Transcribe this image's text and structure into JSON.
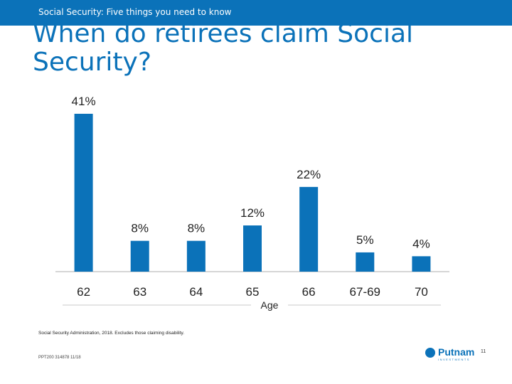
{
  "header": {
    "section_label": "Social Security: Five things you need to know"
  },
  "slide": {
    "title": "When do retirees claim Social Security?"
  },
  "chart_data": {
    "type": "bar",
    "title": "",
    "xlabel": "Age",
    "ylabel": "",
    "categories": [
      "62",
      "63",
      "64",
      "65",
      "66",
      "67-69",
      "70"
    ],
    "values": [
      41,
      8,
      8,
      12,
      22,
      5,
      4
    ],
    "data_labels": [
      "41%",
      "8%",
      "8%",
      "12%",
      "22%",
      "5%",
      "4%"
    ],
    "ylim": [
      0,
      41
    ],
    "grid": false,
    "bar_color": "#0b72b9"
  },
  "footer": {
    "source": "Social Security Administration, 2018. Excludes those claiming disability.",
    "code": "PPT200 314878 11/18",
    "page_number": "11",
    "logo_name": "Putnam",
    "logo_sub": "INVESTMENTS"
  },
  "colors": {
    "brand": "#0b72b9",
    "axis": "#c8c8c8",
    "text": "#222222"
  }
}
